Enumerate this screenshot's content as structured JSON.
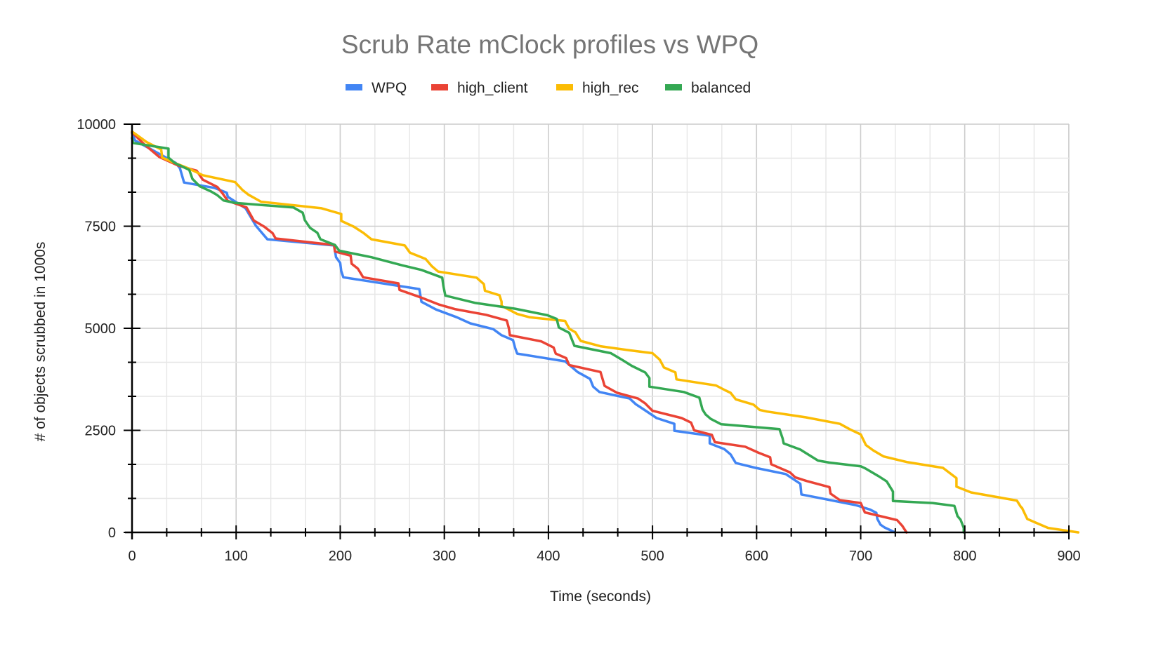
{
  "chart_data": {
    "type": "line",
    "title": "Scrub Rate mClock profiles vs WPQ",
    "xlabel": "Time (seconds)",
    "ylabel": "# of objects scrubbed in 1000s",
    "xlim": [
      0,
      900
    ],
    "ylim": [
      0,
      10000
    ],
    "x_ticks": [
      0,
      100,
      200,
      300,
      400,
      500,
      600,
      700,
      800,
      900
    ],
    "x_tick_labels": [
      "0",
      "100",
      "200",
      "300",
      "400",
      "500",
      "600",
      "700",
      "800",
      "900"
    ],
    "y_ticks": [
      0,
      2500,
      5000,
      7500,
      10000
    ],
    "y_tick_labels": [
      "0",
      "2500",
      "5000",
      "7500",
      "10000"
    ],
    "x_minor_step": 33.33,
    "y_minor_step": 833.33,
    "grid": true,
    "legend_position": "top-center",
    "series": [
      {
        "name": "WPQ",
        "color": "#4285f4",
        "points": [
          [
            0,
            9780
          ],
          [
            3,
            9600
          ],
          [
            42,
            9050
          ],
          [
            46,
            8920
          ],
          [
            50,
            8570
          ],
          [
            79,
            8440
          ],
          [
            91,
            8320
          ],
          [
            92,
            8220
          ],
          [
            109,
            7940
          ],
          [
            119,
            7510
          ],
          [
            130,
            7180
          ],
          [
            194,
            7030
          ],
          [
            196,
            6740
          ],
          [
            200,
            6600
          ],
          [
            201,
            6400
          ],
          [
            203,
            6250
          ],
          [
            276,
            5960
          ],
          [
            278,
            5650
          ],
          [
            292,
            5460
          ],
          [
            312,
            5270
          ],
          [
            325,
            5120
          ],
          [
            347,
            4980
          ],
          [
            355,
            4830
          ],
          [
            366,
            4710
          ],
          [
            368,
            4520
          ],
          [
            370,
            4380
          ],
          [
            416,
            4190
          ],
          [
            428,
            3930
          ],
          [
            440,
            3760
          ],
          [
            443,
            3570
          ],
          [
            449,
            3440
          ],
          [
            478,
            3280
          ],
          [
            484,
            3140
          ],
          [
            490,
            3040
          ],
          [
            504,
            2800
          ],
          [
            521,
            2660
          ],
          [
            521,
            2490
          ],
          [
            555,
            2370
          ],
          [
            555,
            2180
          ],
          [
            569,
            2040
          ],
          [
            575,
            1910
          ],
          [
            580,
            1700
          ],
          [
            599,
            1580
          ],
          [
            628,
            1430
          ],
          [
            642,
            1190
          ],
          [
            643,
            930
          ],
          [
            695,
            670
          ],
          [
            709,
            560
          ],
          [
            715,
            480
          ],
          [
            716,
            330
          ],
          [
            719,
            190
          ],
          [
            723,
            120
          ],
          [
            733,
            0
          ]
        ]
      },
      {
        "name": "high_client",
        "color": "#ea4335",
        "points": [
          [
            0,
            9800
          ],
          [
            12,
            9500
          ],
          [
            26,
            9200
          ],
          [
            45,
            8980
          ],
          [
            62,
            8860
          ],
          [
            68,
            8640
          ],
          [
            82,
            8460
          ],
          [
            87,
            8300
          ],
          [
            92,
            8120
          ],
          [
            110,
            7960
          ],
          [
            117,
            7640
          ],
          [
            127,
            7490
          ],
          [
            135,
            7330
          ],
          [
            138,
            7200
          ],
          [
            194,
            7040
          ],
          [
            195,
            6880
          ],
          [
            210,
            6780
          ],
          [
            211,
            6580
          ],
          [
            217,
            6460
          ],
          [
            222,
            6250
          ],
          [
            256,
            6100
          ],
          [
            257,
            5940
          ],
          [
            277,
            5760
          ],
          [
            295,
            5580
          ],
          [
            310,
            5470
          ],
          [
            340,
            5330
          ],
          [
            360,
            5190
          ],
          [
            362,
            5000
          ],
          [
            363,
            4830
          ],
          [
            393,
            4680
          ],
          [
            405,
            4530
          ],
          [
            407,
            4380
          ],
          [
            417,
            4270
          ],
          [
            420,
            4100
          ],
          [
            450,
            3930
          ],
          [
            452,
            3760
          ],
          [
            454,
            3590
          ],
          [
            466,
            3420
          ],
          [
            486,
            3280
          ],
          [
            493,
            3160
          ],
          [
            500,
            2980
          ],
          [
            528,
            2800
          ],
          [
            537,
            2690
          ],
          [
            540,
            2500
          ],
          [
            557,
            2390
          ],
          [
            560,
            2210
          ],
          [
            589,
            2100
          ],
          [
            602,
            1950
          ],
          [
            613,
            1840
          ],
          [
            614,
            1670
          ],
          [
            632,
            1470
          ],
          [
            637,
            1350
          ],
          [
            648,
            1260
          ],
          [
            670,
            1110
          ],
          [
            671,
            950
          ],
          [
            680,
            790
          ],
          [
            700,
            720
          ],
          [
            704,
            490
          ],
          [
            735,
            300
          ],
          [
            740,
            160
          ],
          [
            744,
            0
          ]
        ]
      },
      {
        "name": "high_rec",
        "color": "#fbbc04",
        "points": [
          [
            0,
            9820
          ],
          [
            14,
            9560
          ],
          [
            28,
            9380
          ],
          [
            29,
            9180
          ],
          [
            40,
            9060
          ],
          [
            54,
            8920
          ],
          [
            68,
            8750
          ],
          [
            99,
            8580
          ],
          [
            106,
            8390
          ],
          [
            112,
            8270
          ],
          [
            124,
            8100
          ],
          [
            182,
            7940
          ],
          [
            201,
            7800
          ],
          [
            201,
            7630
          ],
          [
            213,
            7490
          ],
          [
            222,
            7340
          ],
          [
            230,
            7180
          ],
          [
            262,
            7030
          ],
          [
            267,
            6850
          ],
          [
            282,
            6700
          ],
          [
            288,
            6520
          ],
          [
            294,
            6390
          ],
          [
            331,
            6240
          ],
          [
            338,
            6080
          ],
          [
            339,
            5920
          ],
          [
            353,
            5810
          ],
          [
            355,
            5650
          ],
          [
            355,
            5550
          ],
          [
            370,
            5350
          ],
          [
            382,
            5270
          ],
          [
            416,
            5180
          ],
          [
            420,
            4990
          ],
          [
            426,
            4900
          ],
          [
            431,
            4690
          ],
          [
            450,
            4560
          ],
          [
            478,
            4460
          ],
          [
            500,
            4390
          ],
          [
            507,
            4230
          ],
          [
            511,
            4040
          ],
          [
            522,
            3920
          ],
          [
            523,
            3750
          ],
          [
            561,
            3600
          ],
          [
            570,
            3480
          ],
          [
            575,
            3420
          ],
          [
            580,
            3260
          ],
          [
            597,
            3130
          ],
          [
            603,
            3000
          ],
          [
            610,
            2960
          ],
          [
            647,
            2820
          ],
          [
            680,
            2660
          ],
          [
            690,
            2520
          ],
          [
            700,
            2400
          ],
          [
            705,
            2140
          ],
          [
            712,
            2010
          ],
          [
            722,
            1860
          ],
          [
            745,
            1720
          ],
          [
            779,
            1580
          ],
          [
            792,
            1330
          ],
          [
            792,
            1120
          ],
          [
            806,
            980
          ],
          [
            850,
            780
          ],
          [
            854,
            620
          ],
          [
            855,
            600
          ],
          [
            860,
            330
          ],
          [
            868,
            240
          ],
          [
            880,
            110
          ],
          [
            909,
            0
          ]
        ]
      },
      {
        "name": "balanced",
        "color": "#34a853",
        "points": [
          [
            0,
            9660
          ],
          [
            1,
            9540
          ],
          [
            35,
            9400
          ],
          [
            35,
            9180
          ],
          [
            41,
            9050
          ],
          [
            55,
            8880
          ],
          [
            58,
            8660
          ],
          [
            65,
            8480
          ],
          [
            76,
            8350
          ],
          [
            82,
            8260
          ],
          [
            88,
            8130
          ],
          [
            99,
            8070
          ],
          [
            155,
            7960
          ],
          [
            164,
            7830
          ],
          [
            166,
            7650
          ],
          [
            171,
            7460
          ],
          [
            178,
            7340
          ],
          [
            181,
            7180
          ],
          [
            195,
            7040
          ],
          [
            199,
            6900
          ],
          [
            230,
            6740
          ],
          [
            260,
            6540
          ],
          [
            278,
            6430
          ],
          [
            298,
            6240
          ],
          [
            299,
            6050
          ],
          [
            301,
            5800
          ],
          [
            330,
            5620
          ],
          [
            368,
            5480
          ],
          [
            399,
            5320
          ],
          [
            408,
            5230
          ],
          [
            410,
            5020
          ],
          [
            420,
            4890
          ],
          [
            425,
            4570
          ],
          [
            460,
            4390
          ],
          [
            470,
            4240
          ],
          [
            480,
            4080
          ],
          [
            493,
            3920
          ],
          [
            497,
            3780
          ],
          [
            497,
            3570
          ],
          [
            530,
            3440
          ],
          [
            545,
            3300
          ],
          [
            548,
            3010
          ],
          [
            551,
            2890
          ],
          [
            556,
            2780
          ],
          [
            566,
            2650
          ],
          [
            622,
            2530
          ],
          [
            625,
            2300
          ],
          [
            626,
            2180
          ],
          [
            642,
            2030
          ],
          [
            659,
            1760
          ],
          [
            670,
            1710
          ],
          [
            700,
            1620
          ],
          [
            705,
            1560
          ],
          [
            717,
            1380
          ],
          [
            725,
            1250
          ],
          [
            731,
            1000
          ],
          [
            731,
            770
          ],
          [
            769,
            720
          ],
          [
            790,
            650
          ],
          [
            793,
            400
          ],
          [
            796,
            310
          ],
          [
            799,
            110
          ],
          [
            799,
            0
          ]
        ]
      }
    ]
  }
}
